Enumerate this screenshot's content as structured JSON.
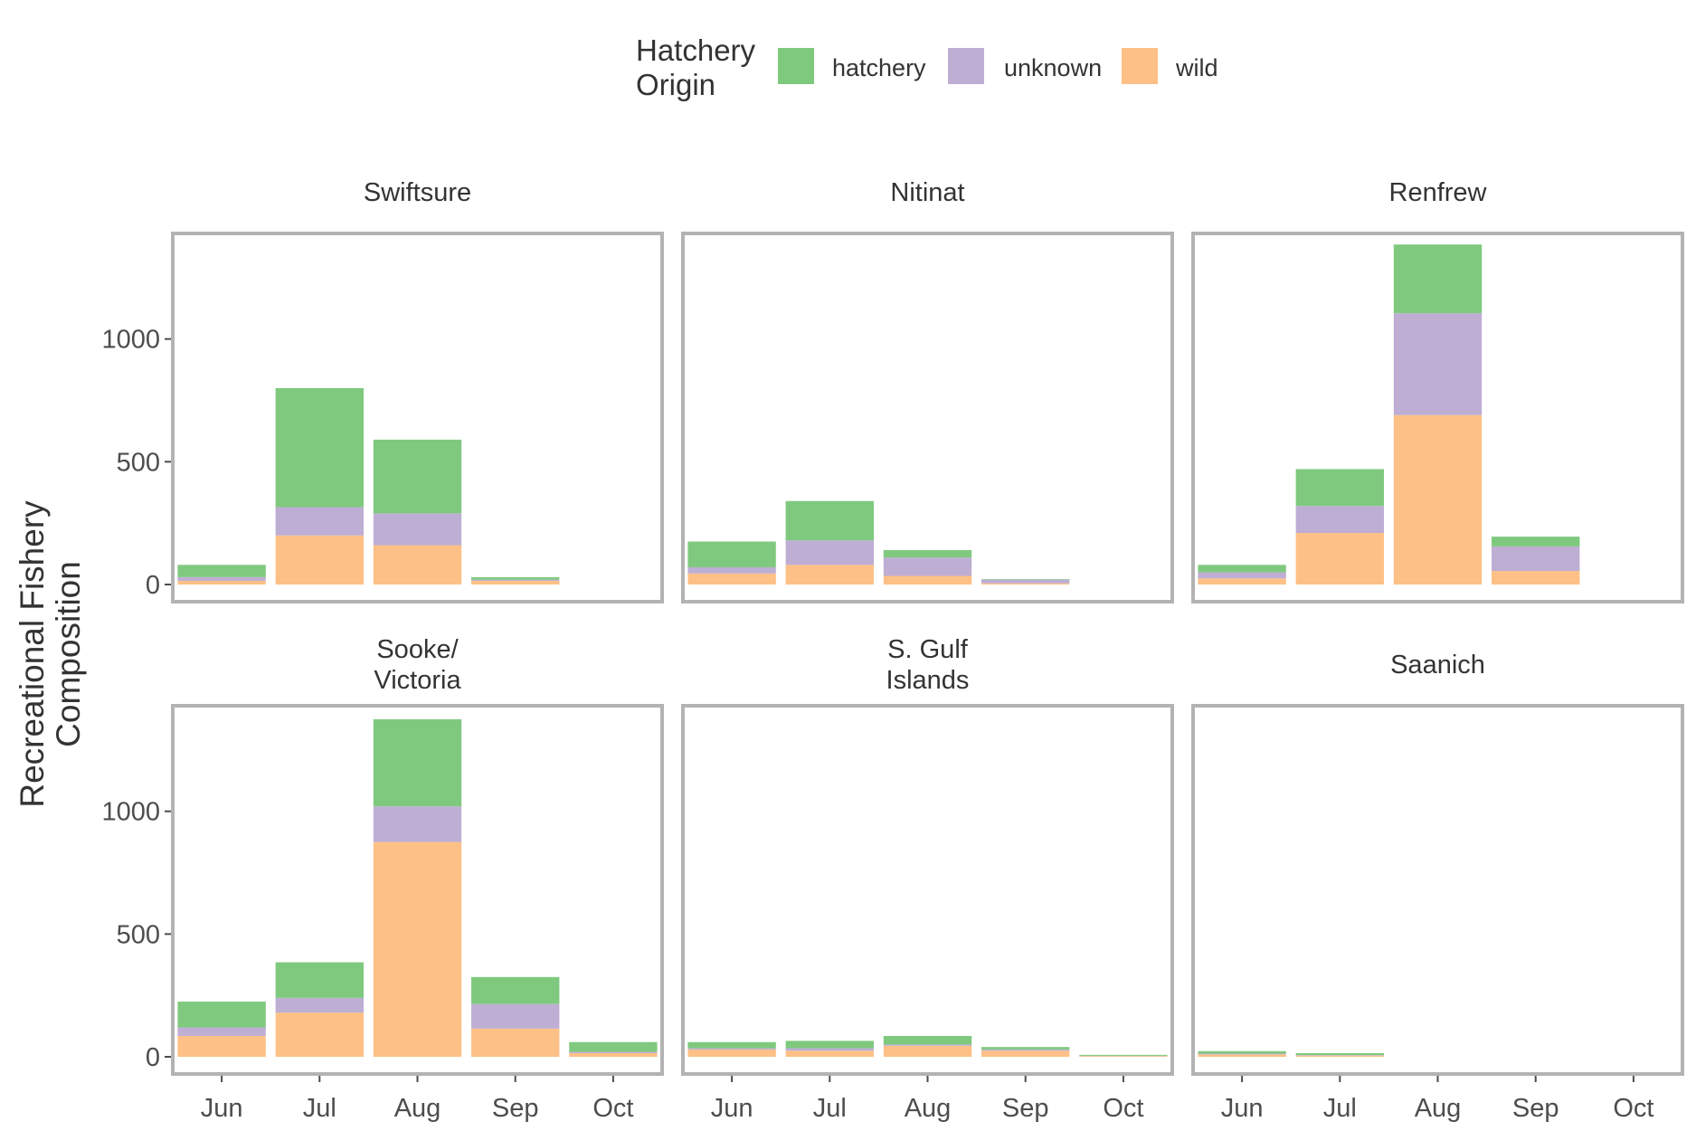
{
  "chart_data": {
    "type": "bar",
    "stacked": true,
    "faceted": true,
    "ylabel_lines": [
      "Recreational Fishery",
      "Composition"
    ],
    "xlabel": "",
    "ylim": [
      -70,
      1430
    ],
    "yticks": [
      0,
      500,
      1000
    ],
    "categories": [
      "Jun",
      "Jul",
      "Aug",
      "Sep",
      "Oct"
    ],
    "grid": false,
    "legend": {
      "title_lines": [
        "Hatchery",
        "Origin"
      ],
      "position": "top",
      "entries": [
        {
          "name": "hatchery",
          "color": "#7fc97f"
        },
        {
          "name": "unknown",
          "color": "#beaed4"
        },
        {
          "name": "wild",
          "color": "#fdc086"
        }
      ]
    },
    "stack_order": [
      "wild",
      "unknown",
      "hatchery"
    ],
    "facets": [
      {
        "title_lines": [
          "Swiftsure"
        ],
        "series": {
          "wild": [
            15,
            200,
            160,
            15,
            null
          ],
          "unknown": [
            15,
            115,
            130,
            5,
            null
          ],
          "hatchery": [
            50,
            485,
            300,
            10,
            null
          ]
        }
      },
      {
        "title_lines": [
          "Nitinat"
        ],
        "series": {
          "wild": [
            45,
            80,
            35,
            5,
            null
          ],
          "unknown": [
            25,
            100,
            75,
            15,
            null
          ],
          "hatchery": [
            105,
            160,
            30,
            2,
            null
          ]
        }
      },
      {
        "title_lines": [
          "Renfrew"
        ],
        "series": {
          "wild": [
            25,
            210,
            690,
            55,
            null
          ],
          "unknown": [
            25,
            110,
            415,
            100,
            null
          ],
          "hatchery": [
            30,
            150,
            280,
            40,
            null
          ]
        }
      },
      {
        "title_lines": [
          "Sooke/",
          "Victoria"
        ],
        "series": {
          "wild": [
            85,
            180,
            875,
            115,
            15
          ],
          "unknown": [
            35,
            60,
            145,
            100,
            5
          ],
          "hatchery": [
            105,
            145,
            355,
            110,
            40
          ]
        }
      },
      {
        "title_lines": [
          "S. Gulf",
          "Islands"
        ],
        "series": {
          "wild": [
            30,
            25,
            45,
            25,
            3
          ],
          "unknown": [
            5,
            10,
            5,
            5,
            1
          ],
          "hatchery": [
            25,
            30,
            35,
            10,
            4
          ]
        }
      },
      {
        "title_lines": [
          "Saanich"
        ],
        "series": {
          "wild": [
            10,
            5,
            null,
            null,
            null
          ],
          "unknown": [
            3,
            2,
            null,
            null,
            null
          ],
          "hatchery": [
            10,
            8,
            null,
            null,
            null
          ]
        }
      }
    ]
  }
}
